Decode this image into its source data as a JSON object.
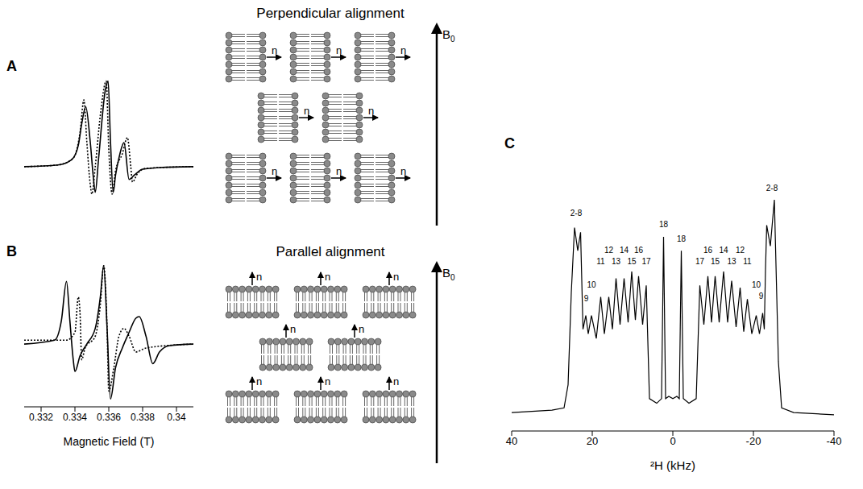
{
  "chart_data": [
    {
      "label": "A",
      "type": "line",
      "xlim": [
        0.331,
        0.341
      ],
      "ylim": [
        -0.5,
        1.1
      ],
      "tick_labels": false,
      "series": [
        {
          "color": "#000000",
          "line_style": "solid",
          "x": [
            0.331,
            0.333,
            0.3338,
            0.3342,
            0.3344,
            0.33464,
            0.3349,
            0.3351,
            0.3352,
            0.3354,
            0.3358,
            0.33596,
            0.3361,
            0.33626,
            0.3364,
            0.3366,
            0.3369,
            0.3372,
            0.3375,
            0.338,
            0.339,
            0.341
          ],
          "values": [
            0,
            0.02,
            0.08,
            0.25,
            0.5,
            0.7,
            0.3,
            -0.15,
            -0.3,
            0.1,
            0.9,
            1.0,
            0.3,
            -0.3,
            -0.1,
            0.1,
            0.28,
            -0.15,
            -0.1,
            -0.03,
            -0.01,
            0
          ]
        },
        {
          "color": "#000000",
          "line_style": "dotted",
          "x": [
            0.331,
            0.333,
            0.3339,
            0.3343,
            0.33453,
            0.3347,
            0.3349,
            0.335,
            0.3352,
            0.3355,
            0.33585,
            0.336,
            0.3362,
            0.3364,
            0.3368,
            0.3371,
            0.3373,
            0.3374,
            0.3377,
            0.3382,
            0.341
          ],
          "values": [
            0,
            0.02,
            0.1,
            0.4,
            0.78,
            0.3,
            -0.2,
            -0.32,
            0.0,
            0.6,
            1.0,
            0.2,
            -0.32,
            -0.05,
            0.15,
            0.34,
            0.0,
            -0.18,
            -0.08,
            -0.02,
            0
          ]
        }
      ]
    },
    {
      "label": "B",
      "type": "line",
      "x_label": "Magnetic Field (T)",
      "xlim": [
        0.331,
        0.341
      ],
      "xticks": [
        0.332,
        0.334,
        0.336,
        0.338,
        0.34
      ],
      "ylim": [
        -0.8,
        1.1
      ],
      "tick_labels": "x",
      "series": [
        {
          "color": "#000000",
          "line_style": "solid",
          "x": [
            0.331,
            0.3328,
            0.3332,
            0.3335,
            0.3337,
            0.3339,
            0.334,
            0.3343,
            0.3347,
            0.3352,
            0.3355,
            0.3357,
            0.3359,
            0.3361,
            0.3364,
            0.3368,
            0.3372,
            0.3376,
            0.3378,
            0.3382,
            0.3386,
            0.339,
            0.3396,
            0.341
          ],
          "values": [
            0,
            0.05,
            0.3,
            0.8,
            0.3,
            -0.2,
            -0.35,
            -0.15,
            0.0,
            0.2,
            0.6,
            1.0,
            0.2,
            -0.7,
            -0.3,
            -0.05,
            0.15,
            0.33,
            0.35,
            0.1,
            -0.25,
            -0.1,
            -0.02,
            0
          ]
        },
        {
          "color": "#000000",
          "line_style": "dotted",
          "x": [
            0.331,
            0.3335,
            0.334,
            0.3342,
            0.3343,
            0.3344,
            0.3346,
            0.3352,
            0.3355,
            0.3357,
            0.3359,
            0.336,
            0.3363,
            0.3366,
            0.3369,
            0.3372,
            0.3376,
            0.3382,
            0.341
          ],
          "values": [
            0.05,
            0.05,
            0.15,
            0.6,
            0.4,
            -0.2,
            -0.05,
            0.1,
            0.5,
            1.0,
            0.2,
            -0.6,
            -0.3,
            0.1,
            0.2,
            0.1,
            -0.1,
            -0.05,
            0
          ]
        }
      ]
    },
    {
      "label": "C",
      "type": "line",
      "x_label": "²H (kHz)",
      "xlim": [
        40,
        -40
      ],
      "xticks": [
        40,
        20,
        0,
        -20,
        -40
      ],
      "ylim": [
        0,
        115
      ],
      "tick_labels": "x",
      "series": [
        {
          "color": "#000000",
          "line_style": "solid",
          "x": [
            40,
            30,
            27,
            26,
            25.2,
            24.4,
            23.6,
            22.9,
            22.6,
            22.3,
            21.6,
            21,
            20.2,
            19,
            17.9,
            17,
            15.9,
            15,
            14.1,
            13.1,
            12.1,
            11.1,
            10.2,
            9.3,
            8.5,
            7.5,
            6.6,
            5.8,
            4,
            2.8,
            2.3,
            1.8,
            1,
            0,
            -1,
            -1.6,
            -2.1,
            -2.6,
            -4,
            -5.8,
            -6.7,
            -7.7,
            -8.7,
            -9.6,
            -10.5,
            -11.5,
            -12.6,
            -13.6,
            -14.6,
            -15.7,
            -16.7,
            -17.6,
            -18.5,
            -19.6,
            -20.7,
            -21.5,
            -22.3,
            -22.7,
            -23.0,
            -23.3,
            -24.2,
            -25.2,
            -26.2,
            -27,
            -30,
            -40
          ],
          "values": [
            8,
            9,
            10,
            20,
            60,
            88,
            78,
            86,
            65,
            44,
            50,
            42,
            50,
            40,
            58,
            42,
            58,
            44,
            66,
            46,
            66,
            47,
            69,
            48,
            67,
            46,
            63,
            14,
            12,
            14,
            84,
            14,
            15,
            14,
            15,
            14,
            78,
            14,
            12,
            14,
            63,
            46,
            67,
            47,
            67,
            47,
            69,
            47,
            65,
            45,
            62,
            43,
            57,
            42,
            50,
            42,
            51,
            44,
            70,
            89,
            80,
            100,
            30,
            10,
            8,
            7
          ]
        }
      ],
      "annotations": [
        {
          "text": "2-8",
          "x": 24.0,
          "y": 93
        },
        {
          "text": "9",
          "x": 21.5,
          "y": 56
        },
        {
          "text": "10",
          "x": 20.2,
          "y": 62
        },
        {
          "text": "11",
          "x": 17.9,
          "y": 72
        },
        {
          "text": "12",
          "x": 15.9,
          "y": 77
        },
        {
          "text": "13",
          "x": 14.1,
          "y": 72
        },
        {
          "text": "14",
          "x": 12.1,
          "y": 77
        },
        {
          "text": "15",
          "x": 10.2,
          "y": 72
        },
        {
          "text": "16",
          "x": 8.5,
          "y": 77
        },
        {
          "text": "17",
          "x": 6.6,
          "y": 72
        },
        {
          "text": "18",
          "x": 2.3,
          "y": 88
        },
        {
          "text": "18",
          "x": -2.1,
          "y": 82
        },
        {
          "text": "17",
          "x": -6.7,
          "y": 72
        },
        {
          "text": "16",
          "x": -8.7,
          "y": 77
        },
        {
          "text": "15",
          "x": -10.5,
          "y": 72
        },
        {
          "text": "14",
          "x": -12.6,
          "y": 77
        },
        {
          "text": "13",
          "x": -14.6,
          "y": 72
        },
        {
          "text": "12",
          "x": -16.7,
          "y": 77
        },
        {
          "text": "11",
          "x": -18.5,
          "y": 72
        },
        {
          "text": "10",
          "x": -20.7,
          "y": 62
        },
        {
          "text": "9",
          "x": -21.9,
          "y": 57
        },
        {
          "text": "2-8",
          "x": -24.6,
          "y": 104
        }
      ]
    }
  ],
  "diagrams": [
    {
      "title": "Perpendicular alignment",
      "alignment": "perpendicular",
      "normal_label": "n",
      "field_label": "B",
      "field_subscript": "0"
    },
    {
      "title": "Parallel alignment",
      "alignment": "parallel",
      "normal_label": "n",
      "field_label": "B",
      "field_subscript": "0"
    }
  ]
}
